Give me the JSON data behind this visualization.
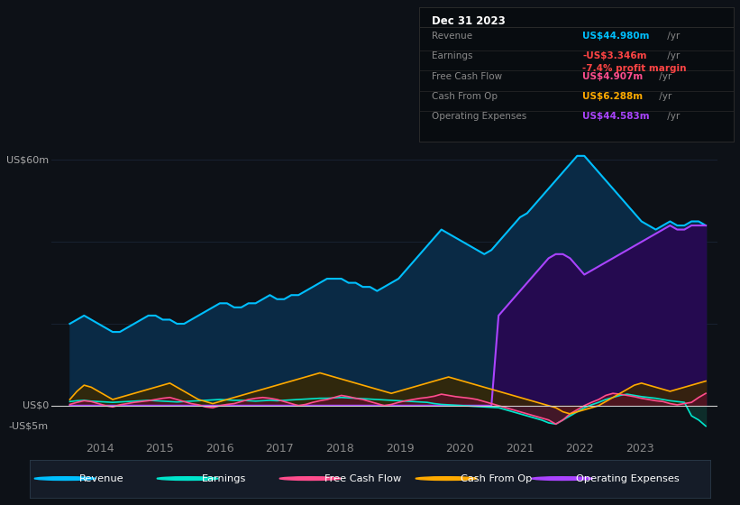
{
  "bg_color": "#0d1117",
  "plot_bg_color": "#0d1117",
  "y_label_60": "US$60m",
  "y_label_0": "US$0",
  "y_label_neg5": "-US$5m",
  "ylim": [
    -7,
    67
  ],
  "xlim": [
    2013.2,
    2024.3
  ],
  "x_ticks": [
    2014,
    2015,
    2016,
    2017,
    2018,
    2019,
    2020,
    2021,
    2022,
    2023
  ],
  "revenue_color": "#00bfff",
  "revenue_fill": "#0a2a45",
  "earnings_color": "#00e5cc",
  "earnings_fill": "#0d3530",
  "fcf_color": "#ff4d8d",
  "fcf_fill": "#5a0f28",
  "cashfromop_color": "#ffaa00",
  "cashfromop_fill": "#3a2800",
  "opex_color": "#aa44ff",
  "opex_fill": "#250a50",
  "zero_line_color": "#cccccc",
  "grid_color": "#1a2535",
  "legend_bg": "#151c28",
  "legend_border": "#2a3a4a",
  "n_points": 90,
  "year_start": 2013.5,
  "year_end": 2024.1,
  "revenue": [
    20,
    21,
    22,
    21,
    20,
    19,
    18,
    18,
    19,
    20,
    21,
    22,
    22,
    21,
    21,
    20,
    20,
    21,
    22,
    23,
    24,
    25,
    25,
    24,
    24,
    25,
    25,
    26,
    27,
    26,
    26,
    27,
    27,
    28,
    29,
    30,
    31,
    31,
    31,
    30,
    30,
    29,
    29,
    28,
    29,
    30,
    31,
    33,
    35,
    37,
    39,
    41,
    43,
    42,
    41,
    40,
    39,
    38,
    37,
    38,
    40,
    42,
    44,
    46,
    47,
    49,
    51,
    53,
    55,
    57,
    59,
    61,
    61,
    59,
    57,
    55,
    53,
    51,
    49,
    47,
    45,
    44,
    43,
    44,
    45,
    44,
    44,
    45,
    45,
    44
  ],
  "earnings": [
    1.0,
    1.2,
    1.3,
    1.1,
    1.0,
    0.9,
    0.8,
    0.9,
    1.0,
    1.1,
    1.2,
    1.3,
    1.2,
    1.1,
    1.0,
    0.9,
    1.0,
    1.1,
    1.2,
    1.3,
    1.4,
    1.5,
    1.4,
    1.3,
    1.3,
    1.2,
    1.1,
    1.2,
    1.3,
    1.2,
    1.3,
    1.4,
    1.5,
    1.6,
    1.7,
    1.8,
    1.8,
    1.9,
    2.0,
    1.9,
    1.8,
    1.7,
    1.6,
    1.5,
    1.4,
    1.3,
    1.2,
    1.1,
    1.0,
    0.9,
    0.8,
    0.5,
    0.3,
    0.2,
    0.1,
    0.0,
    -0.1,
    -0.2,
    -0.3,
    -0.4,
    -0.5,
    -1.0,
    -1.5,
    -2.0,
    -2.5,
    -3.0,
    -3.5,
    -4.2,
    -4.5,
    -3.5,
    -2.5,
    -1.5,
    -0.5,
    0.2,
    0.8,
    1.5,
    2.0,
    2.5,
    2.8,
    2.5,
    2.2,
    2.0,
    1.8,
    1.5,
    1.2,
    1.0,
    0.8,
    -2.5,
    -3.5,
    -5.0
  ],
  "fcf": [
    0.3,
    0.8,
    1.2,
    1.0,
    0.5,
    0.0,
    -0.3,
    0.2,
    0.5,
    0.8,
    1.0,
    1.2,
    1.5,
    1.8,
    2.0,
    1.5,
    1.0,
    0.5,
    0.2,
    -0.3,
    -0.5,
    0.0,
    0.3,
    0.5,
    1.0,
    1.5,
    1.8,
    2.0,
    1.8,
    1.5,
    1.0,
    0.5,
    0.0,
    0.3,
    0.8,
    1.2,
    1.5,
    2.0,
    2.5,
    2.2,
    1.8,
    1.5,
    1.0,
    0.5,
    0.0,
    0.3,
    0.8,
    1.2,
    1.5,
    1.8,
    2.0,
    2.3,
    2.8,
    2.5,
    2.2,
    2.0,
    1.8,
    1.5,
    1.0,
    0.5,
    0.0,
    -0.5,
    -1.0,
    -1.5,
    -2.0,
    -2.5,
    -3.0,
    -3.5,
    -4.5,
    -3.5,
    -2.0,
    -1.0,
    0.0,
    0.8,
    1.5,
    2.5,
    3.0,
    2.8,
    2.5,
    2.2,
    1.8,
    1.5,
    1.2,
    1.0,
    0.5,
    0.2,
    0.5,
    0.8,
    2.0,
    3.0
  ],
  "cashfromop": [
    1.5,
    3.5,
    5.0,
    4.5,
    3.5,
    2.5,
    1.5,
    2.0,
    2.5,
    3.0,
    3.5,
    4.0,
    4.5,
    5.0,
    5.5,
    4.5,
    3.5,
    2.5,
    1.5,
    1.0,
    0.5,
    1.0,
    1.5,
    2.0,
    2.5,
    3.0,
    3.5,
    4.0,
    4.5,
    5.0,
    5.5,
    6.0,
    6.5,
    7.0,
    7.5,
    8.0,
    7.5,
    7.0,
    6.5,
    6.0,
    5.5,
    5.0,
    4.5,
    4.0,
    3.5,
    3.0,
    3.5,
    4.0,
    4.5,
    5.0,
    5.5,
    6.0,
    6.5,
    7.0,
    6.5,
    6.0,
    5.5,
    5.0,
    4.5,
    4.0,
    3.5,
    3.0,
    2.5,
    2.0,
    1.5,
    1.0,
    0.5,
    0.0,
    -0.5,
    -1.5,
    -2.0,
    -1.5,
    -1.0,
    -0.5,
    0.0,
    1.0,
    2.0,
    3.0,
    4.0,
    5.0,
    5.5,
    5.0,
    4.5,
    4.0,
    3.5,
    4.0,
    4.5,
    5.0,
    5.5,
    6.0
  ],
  "opex": [
    0,
    0,
    0,
    0,
    0,
    0,
    0,
    0,
    0,
    0,
    0,
    0,
    0,
    0,
    0,
    0,
    0,
    0,
    0,
    0,
    0,
    0,
    0,
    0,
    0,
    0,
    0,
    0,
    0,
    0,
    0,
    0,
    0,
    0,
    0,
    0,
    0,
    0,
    0,
    0,
    0,
    0,
    0,
    0,
    0,
    0,
    0,
    0,
    0,
    0,
    0,
    0,
    0,
    0,
    0,
    0,
    0,
    0,
    0,
    0,
    22,
    24,
    26,
    28,
    30,
    32,
    34,
    36,
    37,
    37,
    36,
    34,
    32,
    33,
    34,
    35,
    36,
    37,
    38,
    39,
    40,
    41,
    42,
    43,
    44,
    43,
    43,
    44,
    44,
    44
  ],
  "box_title": "Dec 31 2023",
  "box_rows": [
    {
      "label": "Revenue",
      "value": "US$44.980m",
      "suffix": " /yr",
      "val_color": "#00bfff",
      "margin_text": null,
      "margin_color": null
    },
    {
      "label": "Earnings",
      "value": "-US$3.346m",
      "suffix": " /yr",
      "val_color": "#ff4444",
      "margin_text": "-7.4% profit margin",
      "margin_color": "#ff4444"
    },
    {
      "label": "Free Cash Flow",
      "value": "US$4.907m",
      "suffix": " /yr",
      "val_color": "#ff4d8d",
      "margin_text": null,
      "margin_color": null
    },
    {
      "label": "Cash From Op",
      "value": "US$6.288m",
      "suffix": " /yr",
      "val_color": "#ffaa00",
      "margin_text": null,
      "margin_color": null
    },
    {
      "label": "Operating Expenses",
      "value": "US$44.583m",
      "suffix": " /yr",
      "val_color": "#aa44ff",
      "margin_text": null,
      "margin_color": null
    }
  ],
  "legend_items": [
    {
      "color": "#00bfff",
      "label": "Revenue"
    },
    {
      "color": "#00e5cc",
      "label": "Earnings"
    },
    {
      "color": "#ff4d8d",
      "label": "Free Cash Flow"
    },
    {
      "color": "#ffaa00",
      "label": "Cash From Op"
    },
    {
      "color": "#aa44ff",
      "label": "Operating Expenses"
    }
  ]
}
